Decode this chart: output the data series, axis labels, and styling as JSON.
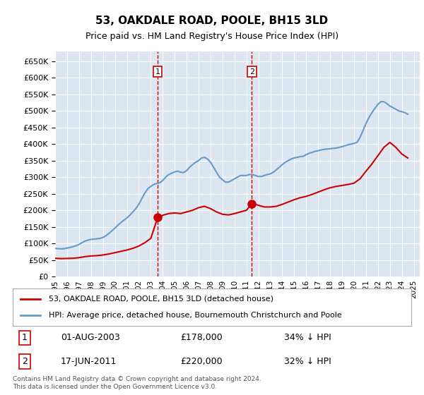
{
  "title": "53, OAKDALE ROAD, POOLE, BH15 3LD",
  "subtitle": "Price paid vs. HM Land Registry's House Price Index (HPI)",
  "ylabel_ticks": [
    "£0",
    "£50K",
    "£100K",
    "£150K",
    "£200K",
    "£250K",
    "£300K",
    "£350K",
    "£400K",
    "£450K",
    "£500K",
    "£550K",
    "£600K",
    "£650K"
  ],
  "ytick_values": [
    0,
    50000,
    100000,
    150000,
    200000,
    250000,
    300000,
    350000,
    400000,
    450000,
    500000,
    550000,
    600000,
    650000
  ],
  "ylim": [
    0,
    680000
  ],
  "xlim_start": 1995.0,
  "xlim_end": 2025.5,
  "background_color": "#dce6f1",
  "plot_bg_color": "#dce6f1",
  "grid_color": "#ffffff",
  "red_line_color": "#cc0000",
  "blue_line_color": "#6699cc",
  "marker1_x": 2003.58,
  "marker1_y": 178000,
  "marker2_x": 2011.46,
  "marker2_y": 220000,
  "sale1_date": "01-AUG-2003",
  "sale1_price": "£178,000",
  "sale1_note": "34% ↓ HPI",
  "sale2_date": "17-JUN-2011",
  "sale2_price": "£220,000",
  "sale2_note": "32% ↓ HPI",
  "legend_red": "53, OAKDALE ROAD, POOLE, BH15 3LD (detached house)",
  "legend_blue": "HPI: Average price, detached house, Bournemouth Christchurch and Poole",
  "footer": "Contains HM Land Registry data © Crown copyright and database right 2024.\nThis data is licensed under the Open Government Licence v3.0.",
  "hpi_years": [
    1995,
    1995.25,
    1995.5,
    1995.75,
    1996,
    1996.25,
    1996.5,
    1996.75,
    1997,
    1997.25,
    1997.5,
    1997.75,
    1998,
    1998.25,
    1998.5,
    1998.75,
    1999,
    1999.25,
    1999.5,
    1999.75,
    2000,
    2000.25,
    2000.5,
    2000.75,
    2001,
    2001.25,
    2001.5,
    2001.75,
    2002,
    2002.25,
    2002.5,
    2002.75,
    2003,
    2003.25,
    2003.5,
    2003.75,
    2004,
    2004.25,
    2004.5,
    2004.75,
    2005,
    2005.25,
    2005.5,
    2005.75,
    2006,
    2006.25,
    2006.5,
    2006.75,
    2007,
    2007.25,
    2007.5,
    2007.75,
    2008,
    2008.25,
    2008.5,
    2008.75,
    2009,
    2009.25,
    2009.5,
    2009.75,
    2010,
    2010.25,
    2010.5,
    2010.75,
    2011,
    2011.25,
    2011.5,
    2011.75,
    2012,
    2012.25,
    2012.5,
    2012.75,
    2013,
    2013.25,
    2013.5,
    2013.75,
    2014,
    2014.25,
    2014.5,
    2014.75,
    2015,
    2015.25,
    2015.5,
    2015.75,
    2016,
    2016.25,
    2016.5,
    2016.75,
    2017,
    2017.25,
    2017.5,
    2017.75,
    2018,
    2018.25,
    2018.5,
    2018.75,
    2019,
    2019.25,
    2019.5,
    2019.75,
    2020,
    2020.25,
    2020.5,
    2020.75,
    2021,
    2021.25,
    2021.5,
    2021.75,
    2022,
    2022.25,
    2022.5,
    2022.75,
    2023,
    2023.25,
    2023.5,
    2023.75,
    2024,
    2024.25,
    2024.5
  ],
  "hpi_values": [
    85000,
    84000,
    83500,
    84000,
    86000,
    88000,
    90000,
    93000,
    97000,
    102000,
    107000,
    110000,
    112000,
    113000,
    114000,
    115000,
    118000,
    123000,
    130000,
    138000,
    146000,
    155000,
    163000,
    170000,
    177000,
    185000,
    195000,
    205000,
    218000,
    235000,
    252000,
    265000,
    272000,
    278000,
    281000,
    283000,
    290000,
    300000,
    308000,
    312000,
    316000,
    318000,
    315000,
    314000,
    320000,
    330000,
    338000,
    345000,
    350000,
    358000,
    360000,
    355000,
    345000,
    330000,
    315000,
    300000,
    292000,
    285000,
    285000,
    290000,
    295000,
    300000,
    305000,
    305000,
    305000,
    308000,
    308000,
    305000,
    302000,
    302000,
    305000,
    308000,
    310000,
    315000,
    322000,
    330000,
    338000,
    345000,
    350000,
    355000,
    358000,
    360000,
    362000,
    363000,
    368000,
    372000,
    375000,
    378000,
    380000,
    382000,
    384000,
    385000,
    386000,
    387000,
    388000,
    390000,
    392000,
    395000,
    398000,
    400000,
    402000,
    405000,
    420000,
    440000,
    462000,
    480000,
    495000,
    508000,
    520000,
    528000,
    528000,
    522000,
    515000,
    510000,
    505000,
    500000,
    498000,
    495000,
    490000
  ],
  "red_years": [
    1995,
    1995.5,
    1996,
    1996.5,
    1997,
    1997.5,
    1998,
    1998.5,
    1999,
    1999.5,
    2000,
    2000.5,
    2001,
    2001.5,
    2002,
    2002.5,
    2003,
    2003.58,
    2003.75,
    2004,
    2004.5,
    2005,
    2005.5,
    2006,
    2006.5,
    2007,
    2007.5,
    2008,
    2008.5,
    2009,
    2009.5,
    2010,
    2010.5,
    2011,
    2011.46,
    2011.75,
    2012,
    2012.5,
    2013,
    2013.5,
    2014,
    2014.5,
    2015,
    2015.5,
    2016,
    2016.5,
    2017,
    2017.5,
    2018,
    2018.5,
    2019,
    2019.5,
    2020,
    2020.5,
    2021,
    2021.5,
    2022,
    2022.5,
    2023,
    2023.5,
    2024,
    2024.5
  ],
  "red_values": [
    55000,
    54000,
    54500,
    55000,
    57000,
    60000,
    62000,
    63000,
    65000,
    68000,
    72000,
    76000,
    80000,
    85000,
    92000,
    102000,
    115000,
    178000,
    178000,
    185000,
    190000,
    192000,
    190000,
    195000,
    200000,
    208000,
    212000,
    205000,
    195000,
    188000,
    186000,
    190000,
    195000,
    200000,
    220000,
    218000,
    215000,
    210000,
    210000,
    212000,
    218000,
    225000,
    232000,
    238000,
    242000,
    248000,
    255000,
    262000,
    268000,
    272000,
    275000,
    278000,
    282000,
    295000,
    318000,
    340000,
    365000,
    390000,
    405000,
    390000,
    370000,
    358000
  ]
}
